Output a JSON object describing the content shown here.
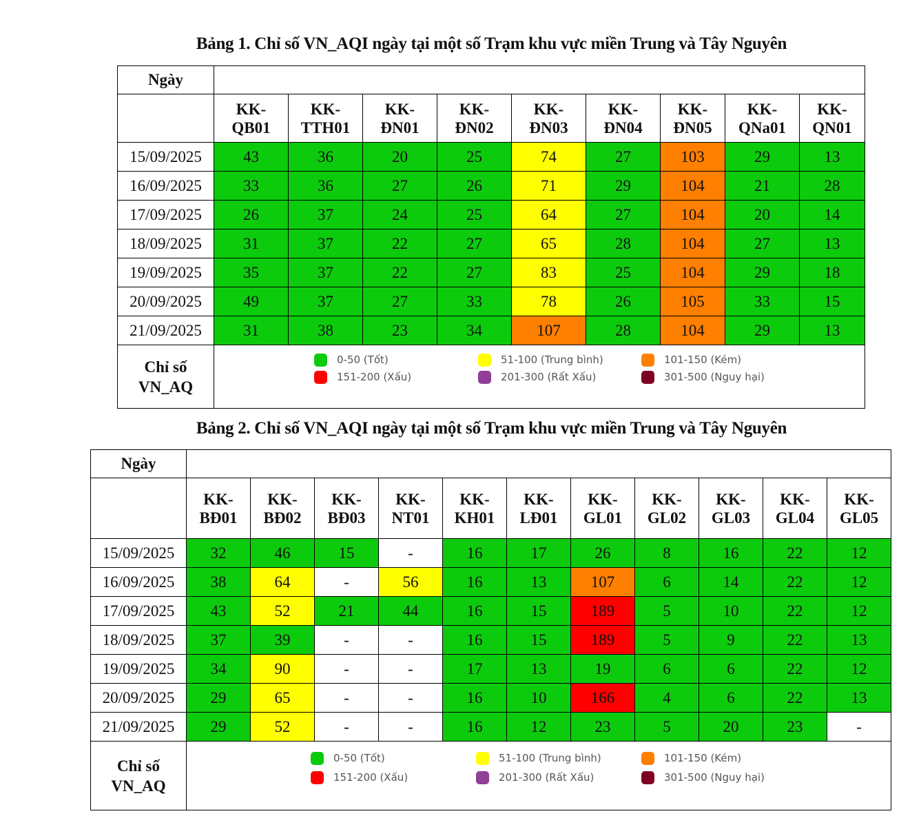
{
  "colors": {
    "green": "#0ccb0c",
    "yellow": "#ffff00",
    "orange": "#ff7f00",
    "red": "#ff0000",
    "purple": "#8f3f97",
    "maroon": "#7e0023"
  },
  "legend": [
    {
      "label": "0-50 (Tốt)",
      "color": "green"
    },
    {
      "label": "51-100 (Trung bình)",
      "color": "yellow"
    },
    {
      "label": "101-150 (Kém)",
      "color": "orange"
    },
    {
      "label": "151-200 (Xấu)",
      "color": "red"
    },
    {
      "label": "201-300 (Rất Xấu)",
      "color": "purple"
    },
    {
      "label": "301-500 (Nguy hại)",
      "color": "maroon"
    }
  ],
  "tables": [
    {
      "title": "Bảng 1. Chỉ số VN_AQI ngày tại một số Trạm khu vực miền Trung và Tây Nguyên",
      "date_header": "Ngày",
      "footer_label": "Chỉ số VN_AQ",
      "stations": [
        "KK-QB01",
        "KK-TTH01",
        "KK-ĐN01",
        "KK-ĐN02",
        "KK-ĐN03",
        "KK-ĐN04",
        "KK-ĐN05",
        "KK-QNa01",
        "KK-QN01"
      ],
      "rows": [
        {
          "date": "15/09/2025",
          "values": [
            "43",
            "36",
            "20",
            "25",
            "74",
            "27",
            "103",
            "29",
            "13"
          ]
        },
        {
          "date": "16/09/2025",
          "values": [
            "33",
            "36",
            "27",
            "26",
            "71",
            "29",
            "104",
            "21",
            "28"
          ]
        },
        {
          "date": "17/09/2025",
          "values": [
            "26",
            "37",
            "24",
            "25",
            "64",
            "27",
            "104",
            "20",
            "14"
          ]
        },
        {
          "date": "18/09/2025",
          "values": [
            "31",
            "37",
            "22",
            "27",
            "65",
            "28",
            "104",
            "27",
            "13"
          ]
        },
        {
          "date": "19/09/2025",
          "values": [
            "35",
            "37",
            "22",
            "27",
            "83",
            "25",
            "104",
            "29",
            "18"
          ]
        },
        {
          "date": "20/09/2025",
          "values": [
            "49",
            "37",
            "27",
            "33",
            "78",
            "26",
            "105",
            "33",
            "15"
          ]
        },
        {
          "date": "21/09/2025",
          "values": [
            "31",
            "38",
            "23",
            "34",
            "107",
            "28",
            "104",
            "29",
            "13"
          ]
        }
      ]
    },
    {
      "title": "Bảng 2. Chỉ số VN_AQI ngày tại một số Trạm khu vực miền Trung và Tây Nguyên",
      "date_header": "Ngày",
      "footer_label": "Chỉ số VN_AQ",
      "stations": [
        "KK-BĐ01",
        "KK-BĐ02",
        "KK-BĐ03",
        "KK-NT01",
        "KK-KH01",
        "KK-LĐ01",
        "KK-GL01",
        "KK-GL02",
        "KK-GL03",
        "KK-GL04",
        "KK-GL05"
      ],
      "rows": [
        {
          "date": "15/09/2025",
          "values": [
            "32",
            "46",
            "15",
            "-",
            "16",
            "17",
            "26",
            "8",
            "16",
            "22",
            "12"
          ]
        },
        {
          "date": "16/09/2025",
          "values": [
            "38",
            "64",
            "-",
            "56",
            "16",
            "13",
            "107",
            "6",
            "14",
            "22",
            "12"
          ]
        },
        {
          "date": "17/09/2025",
          "values": [
            "43",
            "52",
            "21",
            "44",
            "16",
            "15",
            "189",
            "5",
            "10",
            "22",
            "12"
          ]
        },
        {
          "date": "18/09/2025",
          "values": [
            "37",
            "39",
            "-",
            "-",
            "16",
            "15",
            "189",
            "5",
            "9",
            "22",
            "13"
          ]
        },
        {
          "date": "19/09/2025",
          "values": [
            "34",
            "90",
            "-",
            "-",
            "17",
            "13",
            "19",
            "6",
            "6",
            "22",
            "12"
          ]
        },
        {
          "date": "20/09/2025",
          "values": [
            "29",
            "65",
            "-",
            "-",
            "16",
            "10",
            "166",
            "4",
            "6",
            "22",
            "13"
          ]
        },
        {
          "date": "21/09/2025",
          "values": [
            "29",
            "52",
            "-",
            "-",
            "16",
            "12",
            "23",
            "5",
            "20",
            "23",
            "-"
          ]
        }
      ]
    }
  ]
}
